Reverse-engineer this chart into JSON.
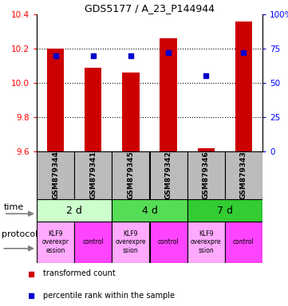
{
  "title": "GDS5177 / A_23_P144944",
  "samples": [
    "GSM879344",
    "GSM879341",
    "GSM879345",
    "GSM879342",
    "GSM879346",
    "GSM879343"
  ],
  "transformed_counts": [
    10.2,
    10.09,
    10.06,
    10.26,
    9.62,
    10.36
  ],
  "percentile_ranks": [
    70,
    70,
    70,
    72,
    55,
    72
  ],
  "ylim_left": [
    9.6,
    10.4
  ],
  "ylim_right": [
    0,
    100
  ],
  "yticks_left": [
    9.6,
    9.8,
    10.0,
    10.2,
    10.4
  ],
  "yticks_right": [
    0,
    25,
    50,
    75,
    100
  ],
  "bar_color": "#CC0000",
  "dot_color": "#0000CC",
  "time_groups": [
    {
      "label": "2 d",
      "samples": [
        0,
        1
      ],
      "color": "#CCFFCC"
    },
    {
      "label": "4 d",
      "samples": [
        2,
        3
      ],
      "color": "#55DD55"
    },
    {
      "label": "7 d",
      "samples": [
        4,
        5
      ],
      "color": "#33CC33"
    }
  ],
  "proto_colors": [
    "#FFAAFF",
    "#FF44FF",
    "#FFAAFF",
    "#FF44FF",
    "#FFAAFF",
    "#FF44FF"
  ],
  "proto_labels": [
    "KLF9\noverexpr\nession",
    "control",
    "KLF9\noverexpre\nssion",
    "control",
    "KLF9\noverexpre\nssion",
    "control"
  ],
  "background_color": "#FFFFFF",
  "sample_box_color": "#BBBBBB",
  "time_label": "time",
  "protocol_label": "protocol",
  "legend_items": [
    {
      "color": "#CC0000",
      "label": "transformed count"
    },
    {
      "color": "#0000CC",
      "label": "percentile rank within the sample"
    }
  ]
}
